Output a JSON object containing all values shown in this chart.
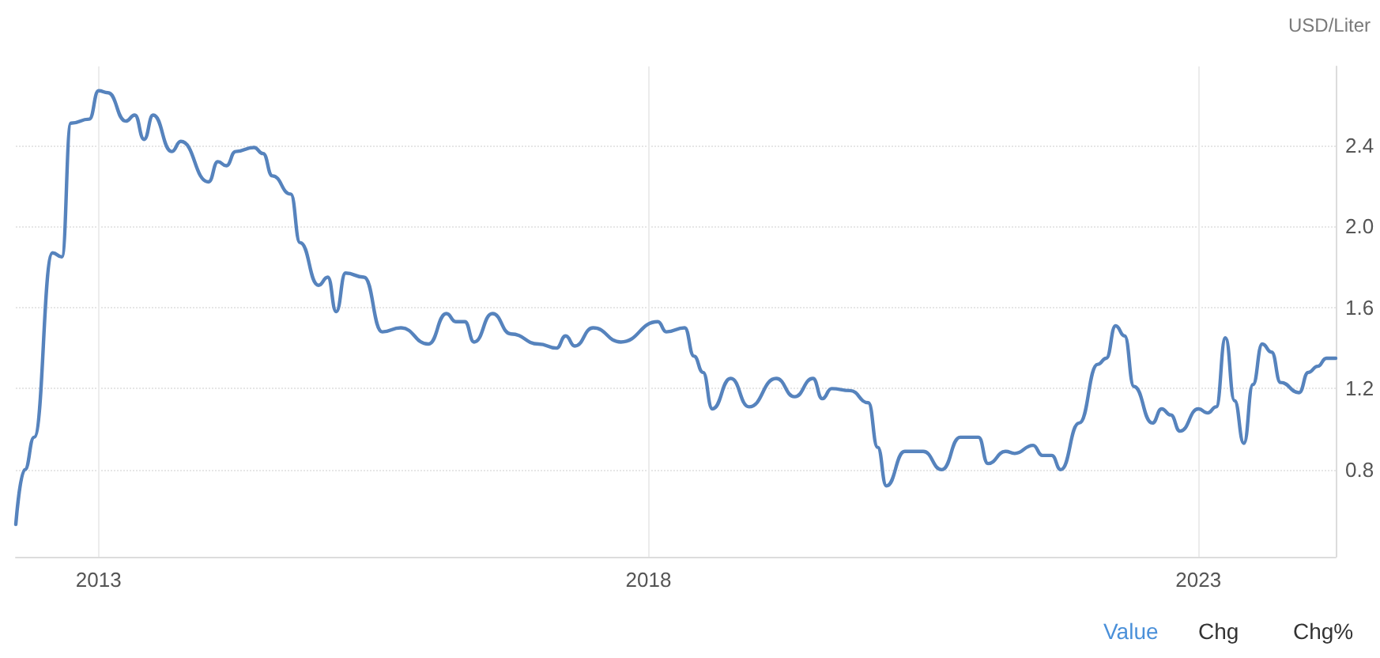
{
  "chart_data": {
    "type": "line",
    "ylabel": "USD/Liter",
    "annotations": [
      "Value",
      "Chg",
      "Chg%"
    ],
    "x": [
      "2012-04",
      "2012-05",
      "2012-06",
      "2012-08",
      "2012-09",
      "2012-10",
      "2012-12",
      "2013-01",
      "2013-02",
      "2013-04",
      "2013-05",
      "2013-06",
      "2013-07",
      "2013-09",
      "2013-10",
      "2014-01",
      "2014-02",
      "2014-03",
      "2014-04",
      "2014-06",
      "2014-07",
      "2014-08",
      "2014-10",
      "2014-11",
      "2015-01",
      "2015-02",
      "2015-03",
      "2015-04",
      "2015-06",
      "2015-08",
      "2015-10",
      "2016-01",
      "2016-03",
      "2016-04",
      "2016-05",
      "2016-06",
      "2016-08",
      "2016-10",
      "2017-01",
      "2017-03",
      "2017-04",
      "2017-05",
      "2017-07",
      "2017-10",
      "2018-02",
      "2018-03",
      "2018-05",
      "2018-06",
      "2018-07",
      "2018-08",
      "2018-10",
      "2018-12",
      "2019-03",
      "2019-05",
      "2019-07",
      "2019-08",
      "2019-09",
      "2019-11",
      "2020-01",
      "2020-02",
      "2020-03",
      "2020-05",
      "2020-07",
      "2020-09",
      "2020-11",
      "2021-01",
      "2021-02",
      "2021-04",
      "2021-05",
      "2021-07",
      "2021-08",
      "2021-09",
      "2021-10",
      "2021-12",
      "2022-02",
      "2022-03",
      "2022-04",
      "2022-05",
      "2022-06",
      "2022-08",
      "2022-09",
      "2022-10",
      "2022-11",
      "2023-01",
      "2023-02",
      "2023-03",
      "2023-04",
      "2023-05",
      "2023-06",
      "2023-07",
      "2023-08",
      "2023-09",
      "2023-10",
      "2023-12",
      "2024-01",
      "2024-02",
      "2024-03",
      "2024-04"
    ],
    "series": [
      {
        "color": "#5683bd",
        "values": [
          0.53,
          0.8,
          0.96,
          1.87,
          1.85,
          2.51,
          2.53,
          2.67,
          2.66,
          2.52,
          2.55,
          2.43,
          2.55,
          2.37,
          2.42,
          2.22,
          2.32,
          2.3,
          2.37,
          2.39,
          2.36,
          2.25,
          2.16,
          1.92,
          1.71,
          1.75,
          1.58,
          1.77,
          1.75,
          1.48,
          1.5,
          1.42,
          1.57,
          1.53,
          1.53,
          1.43,
          1.57,
          1.47,
          1.42,
          1.4,
          1.46,
          1.41,
          1.5,
          1.43,
          1.53,
          1.48,
          1.5,
          1.36,
          1.28,
          1.1,
          1.25,
          1.11,
          1.25,
          1.16,
          1.25,
          1.15,
          1.2,
          1.19,
          1.13,
          0.91,
          0.72,
          0.89,
          0.89,
          0.8,
          0.96,
          0.96,
          0.83,
          0.89,
          0.88,
          0.92,
          0.87,
          0.87,
          0.8,
          1.03,
          1.32,
          1.35,
          1.51,
          1.46,
          1.21,
          1.03,
          1.1,
          1.07,
          0.99,
          1.1,
          1.08,
          1.11,
          1.45,
          1.14,
          0.93,
          1.22,
          1.42,
          1.38,
          1.23,
          1.18,
          1.28,
          1.31,
          1.35,
          1.35
        ]
      }
    ],
    "xlim": [
      "2012-04",
      "2024-04"
    ],
    "xticks": [
      {
        "value": "2013",
        "label": "2013"
      },
      {
        "value": "2018",
        "label": "2018"
      },
      {
        "value": "2023",
        "label": "2023"
      }
    ],
    "ylim": [
      0.37,
      2.79
    ],
    "yticks": [
      0.8,
      1.2,
      1.6,
      {
        "value": 2,
        "label": "2.0"
      },
      2.4
    ],
    "grid": true,
    "marker": "none",
    "line_style": "solid"
  }
}
